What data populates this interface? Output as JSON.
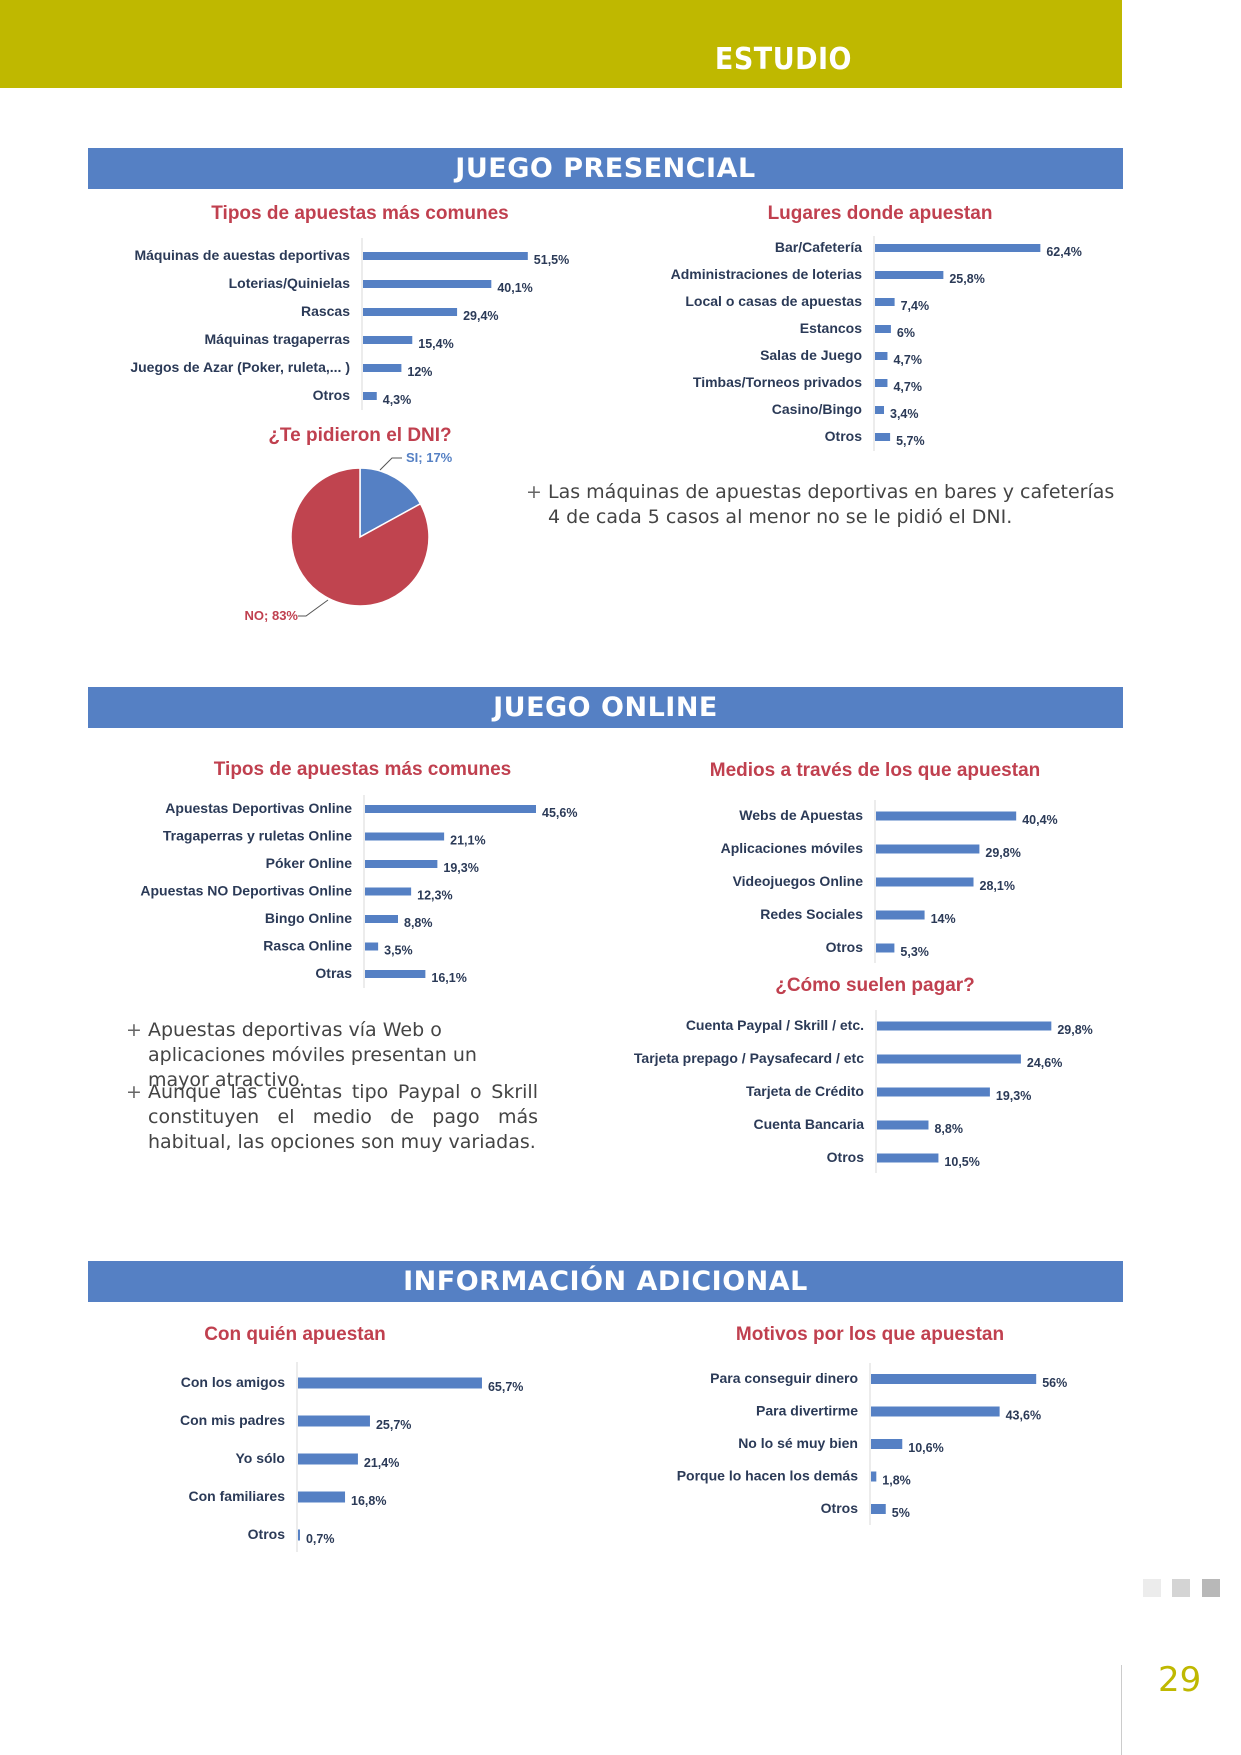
{
  "header": {
    "title": "ESTUDIO"
  },
  "sections": [
    {
      "title": "JUEGO PRESENCIAL"
    },
    {
      "title": "JUEGO ONLINE"
    },
    {
      "title": "INFORMACIÓN ADICIONAL"
    }
  ],
  "chart_titles": {
    "presencial_tipos": "Tipos de apuestas más comunes",
    "presencial_lugares": "Lugares donde apuestan",
    "dni": "¿Te pidieron el DNI?",
    "online_tipos": "Tipos de apuestas más comunes",
    "online_medios": "Medios a través de los que apuestan",
    "online_pago": "¿Cómo suelen pagar?",
    "con_quien": "Con quién apuestan",
    "motivos": "Motivos por los que apuestan"
  },
  "bullets": {
    "presencial_1": "Las máquinas de apuestas deportivas en bares y cafeterías 4 de cada 5 casos al menor no se le pidió el DNI.",
    "online_1": "Apuestas deportivas vía Web o aplicaciones móviles presentan un mayor atractivo.",
    "online_2": "Aunque las cuentas tipo Paypal o Skrill constituyen el medio de pago más habitual, las opciones son muy variadas.",
    "plus_symbol": "+"
  },
  "page": {
    "number": "29"
  },
  "colors": {
    "accent": "#bfb800",
    "band": "#5580c4",
    "bar": "#5580c4",
    "title_red": "#c0404f",
    "pie_no": "#c0444f"
  },
  "chart_data": [
    {
      "id": "presencial_tipos",
      "type": "bar",
      "orientation": "horizontal",
      "title": "Tipos de apuestas más comunes",
      "categories": [
        "Máquinas de auestas deportivas",
        "Loterias/Quinielas",
        "Rascas",
        "Máquinas tragaperras",
        "Juegos de Azar (Poker, ruleta,... )",
        "Otros"
      ],
      "values": [
        51.5,
        40.1,
        29.4,
        15.4,
        12,
        4.3
      ],
      "labels": [
        "51,5%",
        "40,1%",
        "29,4%",
        "15,4%",
        "12%",
        "4,3%"
      ]
    },
    {
      "id": "presencial_lugares",
      "type": "bar",
      "orientation": "horizontal",
      "title": "Lugares donde apuestan",
      "categories": [
        "Bar/Cafetería",
        "Administraciones de loterias",
        "Local o casas de apuestas",
        "Estancos",
        "Salas de Juego",
        "Timbas/Torneos privados",
        "Casino/Bingo",
        "Otros"
      ],
      "values": [
        62.4,
        25.8,
        7.4,
        6,
        4.7,
        4.7,
        3.4,
        5.7
      ],
      "labels": [
        "62,4%",
        "25,8%",
        "7,4%",
        "6%",
        "4,7%",
        "4,7%",
        "3,4%",
        "5,7%"
      ]
    },
    {
      "id": "dni",
      "type": "pie",
      "title": "¿Te pidieron el DNI?",
      "slices": [
        {
          "name": "SI",
          "value": 17,
          "label": "SI; 17%",
          "color": "#5580c4"
        },
        {
          "name": "NO",
          "value": 83,
          "label": "NO; 83%",
          "color": "#c0444f"
        }
      ]
    },
    {
      "id": "online_tipos",
      "type": "bar",
      "orientation": "horizontal",
      "title": "Tipos de apuestas más comunes",
      "categories": [
        "Apuestas Deportivas Online",
        "Tragaperras y ruletas Online",
        "Póker Online",
        "Apuestas NO Deportivas Online",
        "Bingo Online",
        "Rasca Online",
        "Otras"
      ],
      "values": [
        45.6,
        21.1,
        19.3,
        12.3,
        8.8,
        3.5,
        16.1
      ],
      "labels": [
        "45,6%",
        "21,1%",
        "19,3%",
        "12,3%",
        "8,8%",
        "3,5%",
        "16,1%"
      ]
    },
    {
      "id": "online_medios",
      "type": "bar",
      "orientation": "horizontal",
      "title": "Medios a través de los que apuestan",
      "categories": [
        "Webs de Apuestas",
        "Aplicaciones móviles",
        "Videojuegos Online",
        "Redes Sociales",
        "Otros"
      ],
      "values": [
        40.4,
        29.8,
        28.1,
        14,
        5.3
      ],
      "labels": [
        "40,4%",
        "29,8%",
        "28,1%",
        "14%",
        "5,3%"
      ]
    },
    {
      "id": "online_pago",
      "type": "bar",
      "orientation": "horizontal",
      "title": "¿Cómo suelen pagar?",
      "categories": [
        "Cuenta Paypal / Skrill / etc.",
        "Tarjeta prepago / Paysafecard / etc",
        "Tarjeta de Crédito",
        "Cuenta Bancaria",
        "Otros"
      ],
      "values": [
        29.8,
        24.6,
        19.3,
        8.8,
        10.5
      ],
      "labels": [
        "29,8%",
        "24,6%",
        "19,3%",
        "8,8%",
        "10,5%"
      ]
    },
    {
      "id": "con_quien",
      "type": "bar",
      "orientation": "horizontal",
      "title": "Con quién apuestan",
      "categories": [
        "Con los amigos",
        "Con mis padres",
        "Yo sólo",
        "Con familiares",
        "Otros"
      ],
      "values": [
        65.7,
        25.7,
        21.4,
        16.8,
        0.7
      ],
      "labels": [
        "65,7%",
        "25,7%",
        "21,4%",
        "16,8%",
        "0,7%"
      ]
    },
    {
      "id": "motivos",
      "type": "bar",
      "orientation": "horizontal",
      "title": "Motivos por los que apuestan",
      "categories": [
        "Para conseguir dinero",
        "Para divertirme",
        "No lo sé muy bien",
        "Porque lo hacen los demás",
        "Otros"
      ],
      "values": [
        56,
        43.6,
        10.6,
        1.8,
        5
      ],
      "labels": [
        "56%",
        "43,6%",
        "10,6%",
        "1,8%",
        "5%"
      ]
    }
  ]
}
